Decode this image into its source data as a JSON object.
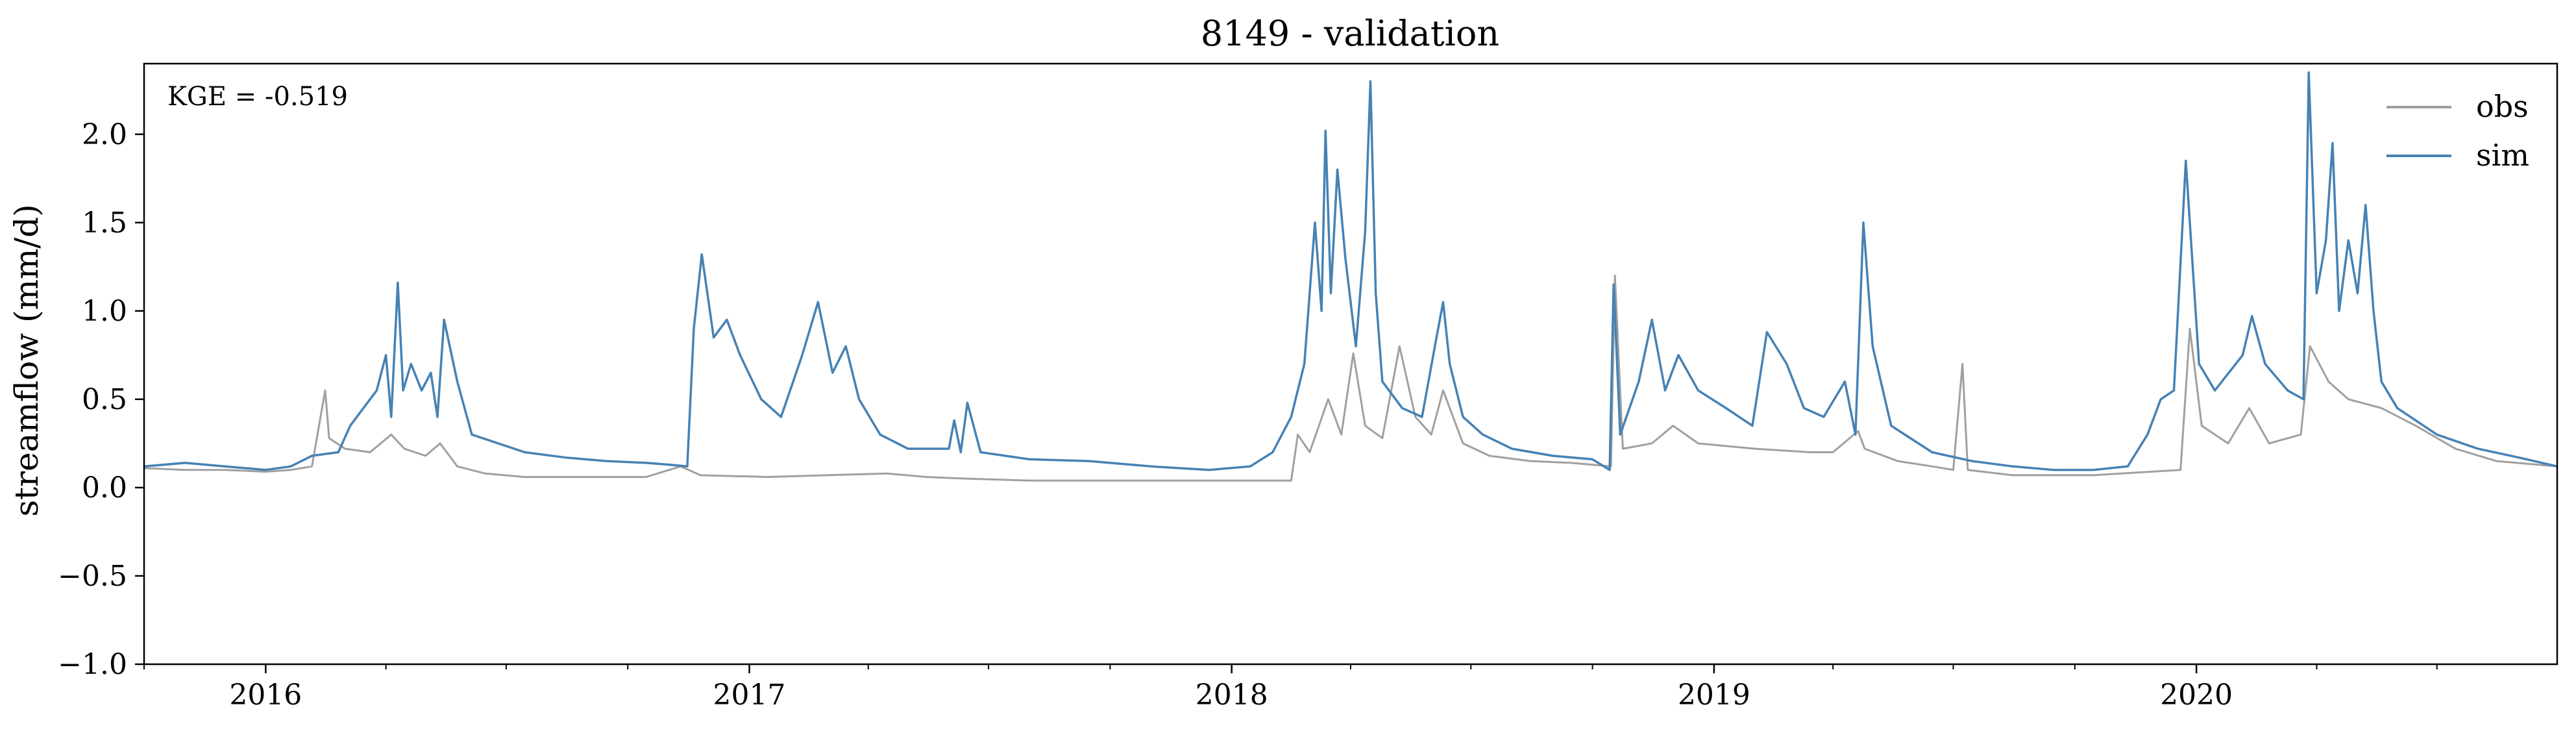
{
  "chart_data": {
    "type": "line",
    "title": "8149 - validation",
    "ylabel": "streamflow (mm/d)",
    "xlabel": "",
    "annotation": "KGE = -0.519",
    "x_range": [
      "2015-10-01",
      "2020-09-30"
    ],
    "ylim": [
      -1.0,
      2.4
    ],
    "yticks": [
      -1.0,
      -0.5,
      0.0,
      0.5,
      1.0,
      1.5,
      2.0
    ],
    "ytick_labels": [
      "−1.0",
      "−0.5",
      "0.0",
      "0.5",
      "1.0",
      "1.5",
      "2.0"
    ],
    "xticks": [
      "2016-01-01",
      "2017-01-01",
      "2018-01-01",
      "2019-01-01",
      "2020-01-01"
    ],
    "xtick_labels": [
      "2016",
      "2017",
      "2018",
      "2019",
      "2020"
    ],
    "grid": false,
    "legend_position": "top-right",
    "series": [
      {
        "name": "obs",
        "color": "#a0a0a0",
        "points": [
          [
            "2015-10-01",
            0.11
          ],
          [
            "2015-11-01",
            0.1
          ],
          [
            "2015-12-01",
            0.1
          ],
          [
            "2016-01-01",
            0.09
          ],
          [
            "2016-01-20",
            0.1
          ],
          [
            "2016-02-05",
            0.12
          ],
          [
            "2016-02-15",
            0.55
          ],
          [
            "2016-02-18",
            0.28
          ],
          [
            "2016-03-01",
            0.22
          ],
          [
            "2016-03-20",
            0.2
          ],
          [
            "2016-04-05",
            0.3
          ],
          [
            "2016-04-15",
            0.22
          ],
          [
            "2016-05-01",
            0.18
          ],
          [
            "2016-05-12",
            0.25
          ],
          [
            "2016-05-25",
            0.12
          ],
          [
            "2016-06-15",
            0.08
          ],
          [
            "2016-07-15",
            0.06
          ],
          [
            "2016-09-01",
            0.06
          ],
          [
            "2016-10-15",
            0.06
          ],
          [
            "2016-11-10",
            0.12
          ],
          [
            "2016-11-25",
            0.07
          ],
          [
            "2017-01-15",
            0.06
          ],
          [
            "2017-03-01",
            0.07
          ],
          [
            "2017-04-15",
            0.08
          ],
          [
            "2017-05-15",
            0.06
          ],
          [
            "2017-06-15",
            0.05
          ],
          [
            "2017-08-01",
            0.04
          ],
          [
            "2017-10-01",
            0.04
          ],
          [
            "2017-12-15",
            0.04
          ],
          [
            "2018-02-15",
            0.04
          ],
          [
            "2018-02-20",
            0.3
          ],
          [
            "2018-03-01",
            0.2
          ],
          [
            "2018-03-15",
            0.5
          ],
          [
            "2018-03-25",
            0.3
          ],
          [
            "2018-04-03",
            0.76
          ],
          [
            "2018-04-12",
            0.35
          ],
          [
            "2018-04-25",
            0.28
          ],
          [
            "2018-05-08",
            0.8
          ],
          [
            "2018-05-20",
            0.4
          ],
          [
            "2018-06-01",
            0.3
          ],
          [
            "2018-06-10",
            0.55
          ],
          [
            "2018-06-25",
            0.25
          ],
          [
            "2018-07-15",
            0.18
          ],
          [
            "2018-08-15",
            0.15
          ],
          [
            "2018-09-15",
            0.14
          ],
          [
            "2018-10-15",
            0.12
          ],
          [
            "2018-10-18",
            1.2
          ],
          [
            "2018-10-24",
            0.22
          ],
          [
            "2018-11-15",
            0.25
          ],
          [
            "2018-12-01",
            0.35
          ],
          [
            "2018-12-20",
            0.25
          ],
          [
            "2019-02-01",
            0.22
          ],
          [
            "2019-03-15",
            0.2
          ],
          [
            "2019-04-01",
            0.2
          ],
          [
            "2019-04-20",
            0.32
          ],
          [
            "2019-04-25",
            0.22
          ],
          [
            "2019-05-20",
            0.15
          ],
          [
            "2019-06-15",
            0.12
          ],
          [
            "2019-07-01",
            0.1
          ],
          [
            "2019-07-08",
            0.7
          ],
          [
            "2019-07-12",
            0.1
          ],
          [
            "2019-08-15",
            0.07
          ],
          [
            "2019-10-15",
            0.07
          ],
          [
            "2019-12-20",
            0.1
          ],
          [
            "2019-12-27",
            0.9
          ],
          [
            "2020-01-05",
            0.35
          ],
          [
            "2020-01-25",
            0.25
          ],
          [
            "2020-02-10",
            0.45
          ],
          [
            "2020-02-25",
            0.25
          ],
          [
            "2020-03-20",
            0.3
          ],
          [
            "2020-03-27",
            0.8
          ],
          [
            "2020-04-10",
            0.6
          ],
          [
            "2020-04-25",
            0.5
          ],
          [
            "2020-05-20",
            0.45
          ],
          [
            "2020-06-15",
            0.35
          ],
          [
            "2020-07-15",
            0.22
          ],
          [
            "2020-08-15",
            0.15
          ],
          [
            "2020-09-30",
            0.12
          ]
        ]
      },
      {
        "name": "sim",
        "color": "#4682b4",
        "points": [
          [
            "2015-10-01",
            0.12
          ],
          [
            "2015-11-01",
            0.14
          ],
          [
            "2015-12-01",
            0.12
          ],
          [
            "2016-01-01",
            0.1
          ],
          [
            "2016-01-20",
            0.12
          ],
          [
            "2016-02-05",
            0.18
          ],
          [
            "2016-02-25",
            0.2
          ],
          [
            "2016-03-05",
            0.35
          ],
          [
            "2016-03-15",
            0.45
          ],
          [
            "2016-03-25",
            0.55
          ],
          [
            "2016-04-01",
            0.75
          ],
          [
            "2016-04-05",
            0.4
          ],
          [
            "2016-04-10",
            1.16
          ],
          [
            "2016-04-14",
            0.55
          ],
          [
            "2016-04-20",
            0.7
          ],
          [
            "2016-04-28",
            0.55
          ],
          [
            "2016-05-05",
            0.65
          ],
          [
            "2016-05-10",
            0.4
          ],
          [
            "2016-05-15",
            0.95
          ],
          [
            "2016-05-25",
            0.6
          ],
          [
            "2016-06-05",
            0.3
          ],
          [
            "2016-06-25",
            0.25
          ],
          [
            "2016-07-15",
            0.2
          ],
          [
            "2016-08-15",
            0.17
          ],
          [
            "2016-09-15",
            0.15
          ],
          [
            "2016-10-15",
            0.14
          ],
          [
            "2016-11-01",
            0.13
          ],
          [
            "2016-11-15",
            0.12
          ],
          [
            "2016-11-20",
            0.9
          ],
          [
            "2016-11-26",
            1.32
          ],
          [
            "2016-12-05",
            0.85
          ],
          [
            "2016-12-15",
            0.95
          ],
          [
            "2016-12-25",
            0.75
          ],
          [
            "2017-01-10",
            0.5
          ],
          [
            "2017-01-25",
            0.4
          ],
          [
            "2017-02-10",
            0.75
          ],
          [
            "2017-02-22",
            1.05
          ],
          [
            "2017-03-05",
            0.65
          ],
          [
            "2017-03-15",
            0.8
          ],
          [
            "2017-03-25",
            0.5
          ],
          [
            "2017-04-10",
            0.3
          ],
          [
            "2017-05-01",
            0.22
          ],
          [
            "2017-06-01",
            0.22
          ],
          [
            "2017-06-05",
            0.38
          ],
          [
            "2017-06-10",
            0.2
          ],
          [
            "2017-06-15",
            0.48
          ],
          [
            "2017-06-25",
            0.2
          ],
          [
            "2017-08-01",
            0.16
          ],
          [
            "2017-09-15",
            0.15
          ],
          [
            "2017-11-01",
            0.12
          ],
          [
            "2017-12-15",
            0.1
          ],
          [
            "2018-01-15",
            0.12
          ],
          [
            "2018-02-01",
            0.2
          ],
          [
            "2018-02-15",
            0.4
          ],
          [
            "2018-02-25",
            0.7
          ],
          [
            "2018-03-05",
            1.5
          ],
          [
            "2018-03-10",
            1.0
          ],
          [
            "2018-03-13",
            2.02
          ],
          [
            "2018-03-17",
            1.1
          ],
          [
            "2018-03-22",
            1.8
          ],
          [
            "2018-03-28",
            1.3
          ],
          [
            "2018-04-05",
            0.8
          ],
          [
            "2018-04-12",
            1.45
          ],
          [
            "2018-04-16",
            2.3
          ],
          [
            "2018-04-20",
            1.1
          ],
          [
            "2018-04-25",
            0.6
          ],
          [
            "2018-05-10",
            0.45
          ],
          [
            "2018-05-25",
            0.4
          ],
          [
            "2018-06-05",
            0.85
          ],
          [
            "2018-06-10",
            1.05
          ],
          [
            "2018-06-15",
            0.7
          ],
          [
            "2018-06-25",
            0.4
          ],
          [
            "2018-07-10",
            0.3
          ],
          [
            "2018-08-01",
            0.22
          ],
          [
            "2018-09-01",
            0.18
          ],
          [
            "2018-10-01",
            0.16
          ],
          [
            "2018-10-14",
            0.1
          ],
          [
            "2018-10-17",
            1.15
          ],
          [
            "2018-10-22",
            0.3
          ],
          [
            "2018-11-05",
            0.6
          ],
          [
            "2018-11-15",
            0.95
          ],
          [
            "2018-11-25",
            0.55
          ],
          [
            "2018-12-05",
            0.75
          ],
          [
            "2018-12-20",
            0.55
          ],
          [
            "2019-01-10",
            0.45
          ],
          [
            "2019-01-30",
            0.35
          ],
          [
            "2019-02-10",
            0.88
          ],
          [
            "2019-02-25",
            0.7
          ],
          [
            "2019-03-10",
            0.45
          ],
          [
            "2019-03-25",
            0.4
          ],
          [
            "2019-04-10",
            0.6
          ],
          [
            "2019-04-18",
            0.3
          ],
          [
            "2019-04-24",
            1.5
          ],
          [
            "2019-05-01",
            0.8
          ],
          [
            "2019-05-15",
            0.35
          ],
          [
            "2019-06-15",
            0.2
          ],
          [
            "2019-07-15",
            0.15
          ],
          [
            "2019-08-15",
            0.12
          ],
          [
            "2019-09-15",
            0.1
          ],
          [
            "2019-10-15",
            0.1
          ],
          [
            "2019-11-10",
            0.12
          ],
          [
            "2019-11-25",
            0.3
          ],
          [
            "2019-12-05",
            0.5
          ],
          [
            "2019-12-15",
            0.55
          ],
          [
            "2019-12-24",
            1.85
          ],
          [
            "2020-01-03",
            0.7
          ],
          [
            "2020-01-15",
            0.55
          ],
          [
            "2020-02-05",
            0.75
          ],
          [
            "2020-02-12",
            0.97
          ],
          [
            "2020-02-22",
            0.7
          ],
          [
            "2020-03-10",
            0.55
          ],
          [
            "2020-03-22",
            0.5
          ],
          [
            "2020-03-26",
            2.35
          ],
          [
            "2020-04-01",
            1.1
          ],
          [
            "2020-04-08",
            1.4
          ],
          [
            "2020-04-13",
            1.95
          ],
          [
            "2020-04-18",
            1.0
          ],
          [
            "2020-04-25",
            1.4
          ],
          [
            "2020-05-02",
            1.1
          ],
          [
            "2020-05-08",
            1.6
          ],
          [
            "2020-05-14",
            1.0
          ],
          [
            "2020-05-20",
            0.6
          ],
          [
            "2020-06-01",
            0.45
          ],
          [
            "2020-07-01",
            0.3
          ],
          [
            "2020-08-01",
            0.22
          ],
          [
            "2020-09-01",
            0.17
          ],
          [
            "2020-09-30",
            0.12
          ]
        ]
      }
    ]
  }
}
